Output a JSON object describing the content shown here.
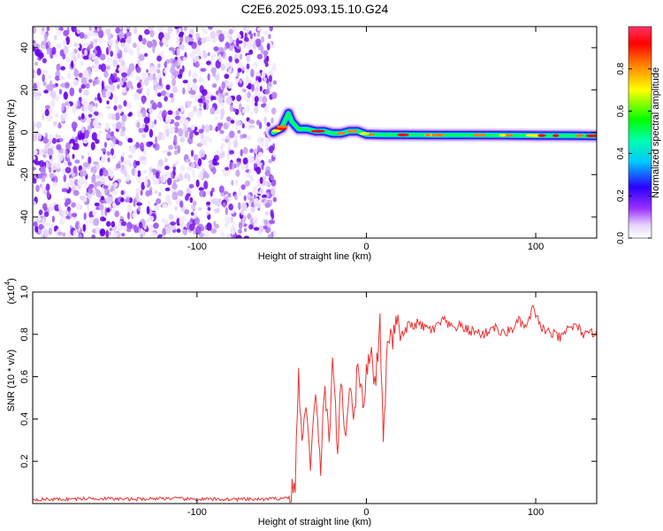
{
  "page_title": "C2E6.2025.093.15.10.G24",
  "colors": {
    "scatter": "#7b1cf0",
    "snr_line": "#ee3333",
    "axis": "#000000"
  },
  "chart_data": [
    {
      "type": "heatmap",
      "title": "C2E6.2025.093.15.10.G24",
      "xlabel": "Height of straight line (km)",
      "ylabel": "Frequency (Hz)",
      "xlim": [
        -197,
        136
      ],
      "ylim": [
        -50,
        50
      ],
      "x_ticks": [
        -100,
        0,
        100
      ],
      "x_tick_labels": [
        "-100",
        "0",
        "100"
      ],
      "y_ticks": [
        -40,
        -20,
        0,
        20,
        40
      ],
      "y_tick_labels": [
        "-40",
        "-20",
        "0",
        "20",
        "40"
      ],
      "noise_region_x": [
        -197,
        -54
      ],
      "signal_track": {
        "x": [
          -55,
          -50,
          -46,
          -44,
          -40,
          -35,
          -30,
          -25,
          -20,
          -15,
          -10,
          -5,
          0,
          10,
          20,
          40,
          60,
          80,
          100,
          120,
          136
        ],
        "y": [
          0,
          2,
          9,
          5,
          1.5,
          1.5,
          0.5,
          0.5,
          -0.5,
          -0.5,
          0.5,
          0.5,
          -1,
          -1.2,
          -1.2,
          -1.3,
          -1.3,
          -1.4,
          -1.5,
          -1.6,
          -1.7
        ]
      },
      "colorbar": {
        "label": "Normalized spectral amplitude",
        "range": [
          0,
          1
        ],
        "ticks": [
          0.0,
          0.2,
          0.4,
          0.6,
          0.8
        ],
        "tick_labels": [
          "0.0",
          "0.2",
          "0.4",
          "0.6",
          "0.8"
        ],
        "colors": [
          "#ffffff",
          "#c9a6f2",
          "#8f00ff",
          "#0000ff",
          "#00e5ff",
          "#00ff00",
          "#ffff00",
          "#ff7f00",
          "#ff0000",
          "#ff3366"
        ]
      }
    },
    {
      "type": "line",
      "xlabel": "Height of straight line (km)",
      "ylabel": "SNR (10 * v/v)",
      "y_scale_label": "(x10",
      "y_scale_exp": "4",
      "y_scale_close": ")",
      "xlim": [
        -197,
        136
      ],
      "ylim": [
        0,
        1.0
      ],
      "x_ticks": [
        -100,
        0,
        100
      ],
      "x_tick_labels": [
        "-100",
        "0",
        "100"
      ],
      "y_ticks": [
        0.2,
        0.4,
        0.6,
        0.8,
        1.0
      ],
      "y_tick_labels": [
        "0.2",
        "0.4",
        "0.6",
        "0.8",
        "1.0"
      ],
      "series": [
        {
          "x": [
            -197,
            -180,
            -160,
            -140,
            -120,
            -100,
            -80,
            -60,
            -50,
            -45,
            -42,
            -40,
            -38,
            -35,
            -33,
            -30,
            -27,
            -25,
            -22,
            -20,
            -17,
            -15,
            -12,
            -10,
            -7,
            -5,
            -2,
            0,
            3,
            5,
            8,
            10,
            13,
            15,
            18,
            20,
            25,
            30,
            35,
            40,
            45,
            50,
            55,
            60,
            65,
            70,
            75,
            80,
            85,
            90,
            95,
            98,
            100,
            105,
            110,
            115,
            120,
            125,
            130,
            136
          ],
          "y": [
            0.02,
            0.02,
            0.025,
            0.02,
            0.025,
            0.02,
            0.02,
            0.02,
            0.025,
            0.03,
            0.1,
            0.6,
            0.3,
            0.45,
            0.2,
            0.5,
            0.15,
            0.55,
            0.3,
            0.7,
            0.25,
            0.55,
            0.3,
            0.6,
            0.4,
            0.7,
            0.45,
            0.62,
            0.75,
            0.55,
            0.85,
            0.3,
            0.82,
            0.75,
            0.88,
            0.78,
            0.84,
            0.85,
            0.83,
            0.82,
            0.87,
            0.83,
            0.84,
            0.82,
            0.81,
            0.8,
            0.84,
            0.8,
            0.82,
            0.86,
            0.83,
            0.93,
            0.88,
            0.82,
            0.8,
            0.78,
            0.84,
            0.83,
            0.79,
            0.82
          ]
        }
      ]
    }
  ]
}
